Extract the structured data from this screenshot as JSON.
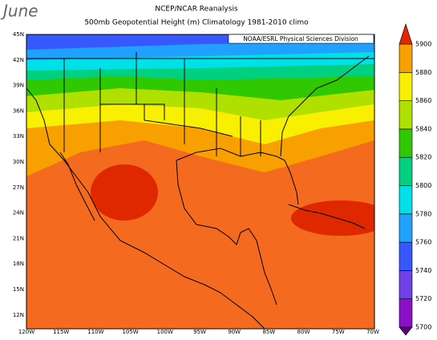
{
  "header": {
    "month": "June",
    "title": "NCEP/NCAR Reanalysis",
    "subtitle": "500mb Geopotential Height (m) Climatology 1981-2010 climo"
  },
  "credit": "NOAA/ESRL Physical Sciences Division",
  "latitude_labels": [
    "45N",
    "42N",
    "39N",
    "36N",
    "33N",
    "30N",
    "27N",
    "24N",
    "21N",
    "18N",
    "15N",
    "12N"
  ],
  "longitude_labels": [
    "120W",
    "115W",
    "110W",
    "105W",
    "100W",
    "95W",
    "90W",
    "85W",
    "80W",
    "75W",
    "70W"
  ],
  "colorbar": {
    "labels": [
      5700,
      5720,
      5740,
      5760,
      5780,
      5800,
      5820,
      5840,
      5860,
      5880,
      5900
    ],
    "colors": [
      "#5a0078",
      "#8a10c8",
      "#7040e8",
      "#3858ff",
      "#20a0ff",
      "#00e0e8",
      "#00d080",
      "#30c800",
      "#b0e000",
      "#f8f000",
      "#f8a000",
      "#f46a1e",
      "#e02800"
    ]
  }
}
